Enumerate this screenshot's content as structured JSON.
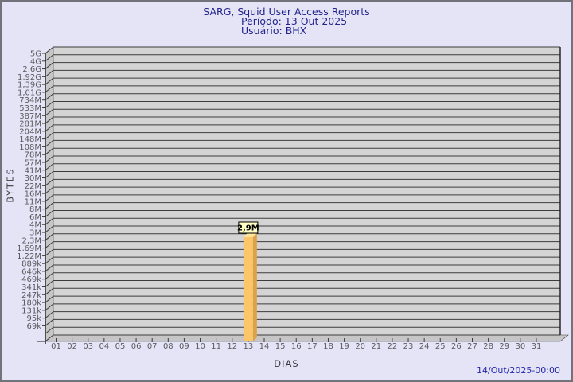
{
  "window": {
    "background": "#e4e4f6",
    "border_color": "#72727a"
  },
  "header": {
    "title": "SARG, Squid User Access Reports",
    "period_line": "Período: 13 Out 2025",
    "user_line": "Usuário: BHX",
    "title_color": "#24248e"
  },
  "footer": {
    "timestamp": "14/Out/2025-00:00",
    "color": "#2626ae"
  },
  "chart_data": {
    "type": "bar",
    "title": "SARG, Squid User Access Reports",
    "subtitle": [
      "Período: 13 Out 2025",
      "Usuário: BHX"
    ],
    "xlabel": "DIAS",
    "ylabel": "BYTES",
    "grid": true,
    "projection": "3d",
    "y_scale": "logarithmic",
    "y_tick_labels": [
      "5G",
      "4G",
      "2,6G",
      "1,92G",
      "1,39G",
      "1,01G",
      "734M",
      "533M",
      "387M",
      "281M",
      "204M",
      "148M",
      "108M",
      "78M",
      "57M",
      "41M",
      "30M",
      "22M",
      "16M",
      "11M",
      "8M",
      "6M",
      "4M",
      "3M",
      "2,3M",
      "1,69M",
      "1,22M",
      "889k",
      "646k",
      "469k",
      "341k",
      "247k",
      "180k",
      "131k",
      "95k",
      "69k"
    ],
    "categories": [
      "01",
      "02",
      "03",
      "04",
      "05",
      "06",
      "07",
      "08",
      "09",
      "10",
      "11",
      "12",
      "13",
      "14",
      "15",
      "16",
      "17",
      "18",
      "19",
      "20",
      "21",
      "22",
      "23",
      "24",
      "25",
      "26",
      "27",
      "28",
      "29",
      "30",
      "31"
    ],
    "series": [
      {
        "name": "BHX",
        "values": [
          0,
          0,
          0,
          0,
          0,
          0,
          0,
          0,
          0,
          0,
          0,
          0,
          2900000,
          0,
          0,
          0,
          0,
          0,
          0,
          0,
          0,
          0,
          0,
          0,
          0,
          0,
          0,
          0,
          0,
          0,
          0
        ]
      }
    ],
    "bars": [
      {
        "day": "13",
        "value_label": "2,9M",
        "value_bytes": 2900000
      }
    ],
    "colors": {
      "plot_back_wall": "#d4d4d4",
      "plot_side_wall": "#c6c6c6",
      "grid_line": "#3c3c3c",
      "axis_line": "#1c1c1c",
      "tick_label": "#5a5a5e",
      "bar_front": "#fcc569",
      "bar_top": "#ffe59a",
      "bar_side": "#dca14b",
      "value_box_fill": "#ffffc6",
      "value_box_border": "#000000",
      "value_text": "#000000"
    }
  }
}
